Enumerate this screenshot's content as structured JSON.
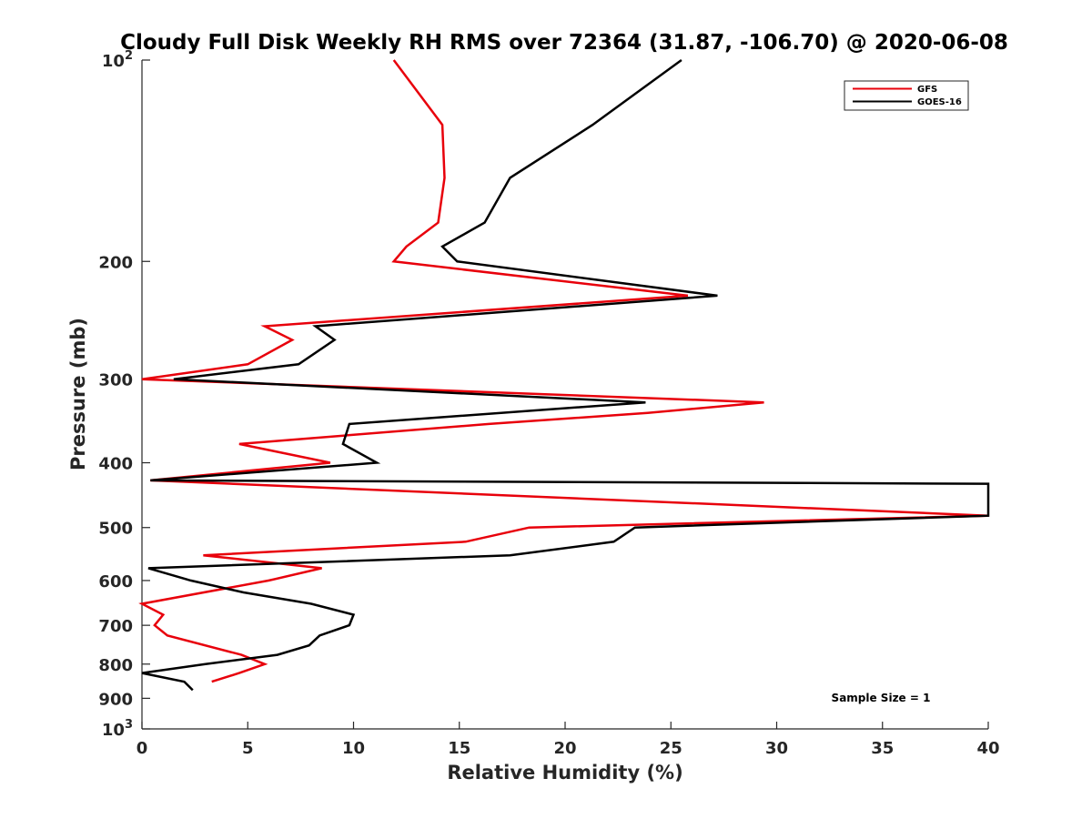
{
  "chart_data": {
    "type": "line",
    "title": "Cloudy Full Disk Weekly RH RMS over 72364 (31.87, -106.70) @ 2020-06-08",
    "xlabel": "Relative Humidity (%)",
    "ylabel": "Pressure (mb)",
    "xlim": [
      0,
      40
    ],
    "ylim": [
      100,
      1000
    ],
    "y_scale": "log",
    "y_reversed": true,
    "x_ticks": [
      "0",
      "5",
      "10",
      "15",
      "20",
      "25",
      "30",
      "35",
      "40"
    ],
    "y_ticks": [
      {
        "value": 100,
        "base": "10",
        "exp": "2"
      },
      {
        "value": 200,
        "label": "200"
      },
      {
        "value": 300,
        "label": "300"
      },
      {
        "value": 400,
        "label": "400"
      },
      {
        "value": 500,
        "label": "500"
      },
      {
        "value": 600,
        "label": "600"
      },
      {
        "value": 700,
        "label": "700"
      },
      {
        "value": 800,
        "label": "800"
      },
      {
        "value": 900,
        "label": "900"
      },
      {
        "value": 1000,
        "base": "10",
        "exp": "3"
      }
    ],
    "legend_position": "top-right",
    "annotation": "Sample Size = 1",
    "series": [
      {
        "name": "GFS",
        "color": "#e8000b",
        "points": [
          [
            11.9,
            100
          ],
          [
            14.2,
            125
          ],
          [
            14.3,
            150
          ],
          [
            14.0,
            175
          ],
          [
            12.5,
            190
          ],
          [
            11.9,
            200
          ],
          [
            25.8,
            225
          ],
          [
            5.8,
            250
          ],
          [
            7.1,
            262
          ],
          [
            5.0,
            285
          ],
          [
            0.0,
            300
          ],
          [
            29.4,
            325
          ],
          [
            23.9,
            337
          ],
          [
            16.4,
            350
          ],
          [
            4.6,
            375
          ],
          [
            8.9,
            400
          ],
          [
            0.4,
            425
          ],
          [
            40.0,
            480
          ],
          [
            18.3,
            500
          ],
          [
            15.3,
            525
          ],
          [
            2.9,
            550
          ],
          [
            8.5,
            575
          ],
          [
            6.0,
            600
          ],
          [
            0.0,
            650
          ],
          [
            1.0,
            675
          ],
          [
            0.6,
            700
          ],
          [
            1.2,
            725
          ],
          [
            4.7,
            775
          ],
          [
            5.8,
            800
          ],
          [
            4.6,
            825
          ],
          [
            3.3,
            850
          ]
        ]
      },
      {
        "name": "GOES-16",
        "color": "#000000",
        "points": [
          [
            25.5,
            100
          ],
          [
            21.3,
            125
          ],
          [
            17.4,
            150
          ],
          [
            16.2,
            175
          ],
          [
            14.2,
            190
          ],
          [
            14.9,
            200
          ],
          [
            27.2,
            225
          ],
          [
            8.2,
            250
          ],
          [
            9.1,
            262
          ],
          [
            7.4,
            285
          ],
          [
            1.5,
            300
          ],
          [
            23.8,
            325
          ],
          [
            9.8,
            350
          ],
          [
            9.5,
            375
          ],
          [
            11.1,
            400
          ],
          [
            0.4,
            425
          ],
          [
            40.0,
            430
          ],
          [
            40.0,
            480
          ],
          [
            23.3,
            500
          ],
          [
            22.3,
            525
          ],
          [
            17.4,
            550
          ],
          [
            0.3,
            575
          ],
          [
            2.3,
            600
          ],
          [
            4.8,
            625
          ],
          [
            8.0,
            650
          ],
          [
            10.0,
            675
          ],
          [
            9.8,
            700
          ],
          [
            8.4,
            725
          ],
          [
            7.9,
            750
          ],
          [
            6.4,
            775
          ],
          [
            3.0,
            800
          ],
          [
            0.0,
            825
          ],
          [
            2.0,
            850
          ],
          [
            2.4,
            875
          ]
        ]
      }
    ]
  }
}
